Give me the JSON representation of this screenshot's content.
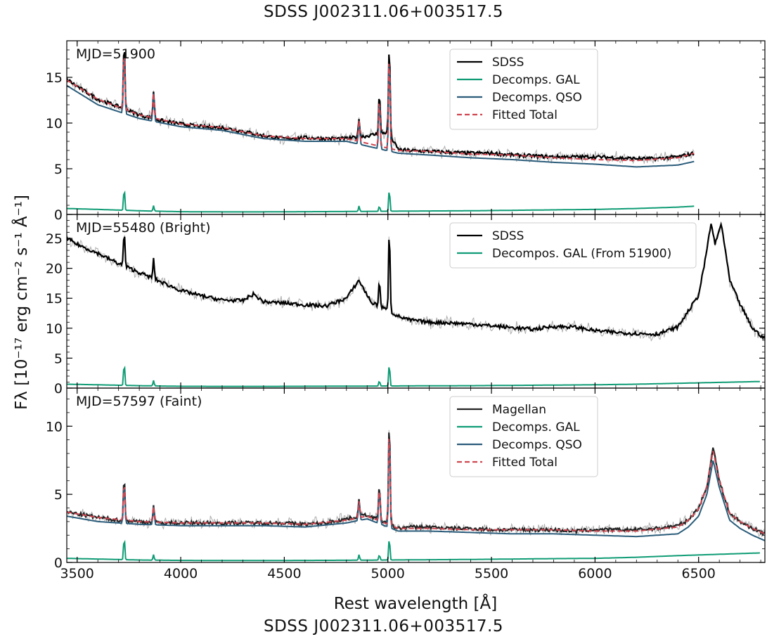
{
  "figure": {
    "title_top": "SDSS J002311.06+003517.5",
    "title_bottom": "SDSS J002311.06+003517.5",
    "xlabel": "Rest wavelength [Å]",
    "ylabel": "Fλ [10⁻¹⁷ erg cm⁻² s⁻¹ Å⁻¹]"
  },
  "colors": {
    "sdss": "#000000",
    "gal": "#0f9c75",
    "qso": "#2a5c7a",
    "total": "#d04550",
    "error": "#9a9a9a"
  },
  "chart_data": [
    {
      "type": "line",
      "panel_label": "MJD=51900",
      "xlim": [
        3450,
        6820
      ],
      "ylim": [
        0,
        19
      ],
      "yticks": [
        0,
        5,
        10,
        15
      ],
      "xticks": [
        3500,
        4000,
        4500,
        5000,
        5500,
        6000,
        6500
      ],
      "grid": false,
      "legend_position": "top-right",
      "series": [
        {
          "name": "SDSS",
          "style": "solid",
          "color": "#000000",
          "x": [
            3450,
            3500,
            3600,
            3700,
            3800,
            3900,
            4000,
            4100,
            4200,
            4300,
            4400,
            4500,
            4600,
            4700,
            4800,
            4900,
            5000,
            5050,
            5100,
            5200,
            5300,
            5400,
            5500,
            5600,
            5700,
            5800,
            5900,
            6000,
            6100,
            6200,
            6300,
            6400,
            6480
          ],
          "y": [
            14.8,
            14.0,
            12.6,
            11.8,
            10.9,
            10.3,
            9.9,
            9.6,
            9.5,
            9.1,
            8.6,
            8.3,
            8.4,
            8.3,
            8.3,
            8.6,
            9.0,
            7.1,
            7.0,
            6.9,
            6.8,
            6.7,
            6.7,
            6.5,
            6.4,
            6.3,
            6.3,
            6.3,
            6.2,
            6.1,
            6.1,
            6.3,
            6.7
          ]
        },
        {
          "name": "Decomps. GAL",
          "style": "solid",
          "color": "#0f9c75",
          "x": [
            3450,
            3600,
            3800,
            4000,
            4200,
            4400,
            4600,
            4800,
            5000,
            5200,
            5400,
            5600,
            5800,
            6000,
            6200,
            6400,
            6480
          ],
          "y": [
            0.65,
            0.55,
            0.4,
            0.3,
            0.28,
            0.28,
            0.3,
            0.32,
            0.35,
            0.38,
            0.4,
            0.45,
            0.5,
            0.55,
            0.65,
            0.8,
            0.9
          ]
        },
        {
          "name": "Decomps. QSO",
          "style": "solid",
          "color": "#2a5c7a",
          "x": [
            3450,
            3600,
            3800,
            4000,
            4200,
            4400,
            4600,
            4800,
            5050,
            5200,
            5400,
            5600,
            5800,
            6000,
            6200,
            6400,
            6480
          ],
          "y": [
            14.1,
            12.0,
            10.5,
            9.6,
            9.2,
            8.3,
            8.0,
            8.0,
            6.7,
            6.5,
            6.2,
            6.0,
            5.7,
            5.5,
            5.2,
            5.4,
            5.8
          ]
        },
        {
          "name": "Fitted Total",
          "style": "dashed",
          "color": "#d04550",
          "x": [
            3450,
            3600,
            3800,
            4000,
            4200,
            4400,
            4600,
            4800,
            5050,
            5200,
            5400,
            5600,
            5800,
            6000,
            6200,
            6400,
            6480
          ],
          "y": [
            14.7,
            12.6,
            10.9,
            9.9,
            9.5,
            8.6,
            8.3,
            8.3,
            7.0,
            6.9,
            6.6,
            6.5,
            6.2,
            6.0,
            5.9,
            6.2,
            6.7
          ]
        }
      ],
      "emission_lines": [
        {
          "x": 3727,
          "peak": 19.0
        },
        {
          "x": 3869,
          "peak": 13.5
        },
        {
          "x": 4861,
          "peak": 10.5
        },
        {
          "x": 4959,
          "peak": 13.5
        },
        {
          "x": 5007,
          "peak": 19.0
        }
      ]
    },
    {
      "type": "line",
      "panel_label": "MJD=55480 (Bright)",
      "xlim": [
        3450,
        6820
      ],
      "ylim": [
        0,
        29
      ],
      "yticks": [
        0,
        5,
        10,
        15,
        20,
        25
      ],
      "xticks": [
        3500,
        4000,
        4500,
        5000,
        5500,
        6000,
        6500
      ],
      "grid": false,
      "legend_position": "top-right",
      "series": [
        {
          "name": "SDSS",
          "style": "solid",
          "color": "#000000",
          "x": [
            3450,
            3500,
            3600,
            3700,
            3800,
            3900,
            4000,
            4100,
            4200,
            4300,
            4350,
            4400,
            4500,
            4600,
            4700,
            4800,
            4860,
            4920,
            5000,
            5050,
            5100,
            5200,
            5300,
            5400,
            5500,
            5600,
            5700,
            5800,
            5900,
            6000,
            6100,
            6200,
            6300,
            6400,
            6500,
            6530,
            6560,
            6580,
            6610,
            6650,
            6700,
            6760,
            6820
          ],
          "y": [
            25.0,
            24.0,
            22.5,
            20.8,
            19.3,
            17.8,
            16.3,
            15.4,
            14.7,
            14.6,
            15.7,
            14.4,
            14.2,
            13.9,
            13.7,
            15.0,
            18.0,
            14.3,
            13.0,
            12.0,
            11.4,
            11.0,
            10.9,
            10.7,
            10.4,
            10.1,
            9.8,
            10.3,
            10.2,
            9.6,
            9.3,
            9.1,
            9.0,
            10.2,
            15.5,
            21.0,
            27.5,
            24.0,
            27.5,
            18.0,
            14.0,
            10.0,
            8.2
          ]
        },
        {
          "name": "Decompos. GAL (From 51900)",
          "style": "solid",
          "color": "#0f9c75",
          "x": [
            3450,
            3600,
            3800,
            4000,
            4200,
            4400,
            4600,
            4800,
            5000,
            5200,
            5400,
            5600,
            5800,
            6000,
            6200,
            6400,
            6800
          ],
          "y": [
            0.65,
            0.55,
            0.4,
            0.3,
            0.28,
            0.28,
            0.3,
            0.32,
            0.35,
            0.38,
            0.4,
            0.45,
            0.5,
            0.55,
            0.65,
            0.8,
            1.1
          ]
        }
      ],
      "emission_lines": [
        {
          "x": 3727,
          "peak": 26.2
        },
        {
          "x": 3869,
          "peak": 21.5
        },
        {
          "x": 4959,
          "peak": 18.0
        },
        {
          "x": 5007,
          "peak": 27.0
        }
      ]
    },
    {
      "type": "line",
      "panel_label": "MJD=57597 (Faint)",
      "xlim": [
        3450,
        6820
      ],
      "ylim": [
        0,
        12.8
      ],
      "yticks": [
        0,
        5,
        10
      ],
      "xticks": [
        3500,
        4000,
        4500,
        5000,
        5500,
        6000,
        6500
      ],
      "xticklabels": [
        "3500",
        "4000",
        "4500",
        "5000",
        "5500",
        "6000",
        "6500"
      ],
      "grid": false,
      "legend_position": "top-right",
      "series": [
        {
          "name": "Magellan",
          "style": "solid",
          "color": "#222222",
          "x": [
            3450,
            3600,
            3700,
            3800,
            3900,
            4000,
            4100,
            4200,
            4300,
            4400,
            4500,
            4600,
            4700,
            4800,
            4900,
            5050,
            5100,
            5200,
            5300,
            5400,
            5500,
            5600,
            5700,
            5800,
            5900,
            6000,
            6100,
            6200,
            6300,
            6400,
            6450,
            6500,
            6540,
            6570,
            6600,
            6650,
            6700,
            6760,
            6820
          ],
          "y": [
            3.7,
            3.3,
            3.1,
            3.0,
            2.9,
            2.9,
            2.9,
            2.9,
            2.9,
            2.9,
            2.9,
            2.8,
            2.9,
            3.2,
            3.5,
            2.5,
            2.6,
            2.6,
            2.5,
            2.5,
            2.4,
            2.4,
            2.4,
            2.4,
            2.3,
            2.4,
            2.4,
            2.4,
            2.5,
            2.7,
            3.1,
            4.0,
            5.5,
            8.5,
            6.0,
            3.6,
            3.0,
            2.5,
            2.1
          ]
        },
        {
          "name": "Decomps. GAL",
          "style": "solid",
          "color": "#0f9c75",
          "x": [
            3450,
            3600,
            3800,
            4000,
            4200,
            4400,
            4600,
            4800,
            5000,
            5200,
            5400,
            5600,
            5800,
            6000,
            6200,
            6400,
            6800
          ],
          "y": [
            0.3,
            0.25,
            0.18,
            0.15,
            0.14,
            0.14,
            0.15,
            0.16,
            0.18,
            0.2,
            0.22,
            0.25,
            0.28,
            0.3,
            0.38,
            0.5,
            0.7
          ]
        },
        {
          "name": "Decomps. QSO",
          "style": "solid",
          "color": "#2a5c7a",
          "x": [
            3450,
            3600,
            3800,
            4000,
            4200,
            4400,
            4600,
            4800,
            4900,
            5050,
            5200,
            5400,
            5600,
            5800,
            6000,
            6200,
            6400,
            6450,
            6500,
            6540,
            6570,
            6600,
            6650,
            6700,
            6760,
            6820
          ],
          "y": [
            3.4,
            3.0,
            2.8,
            2.7,
            2.7,
            2.7,
            2.6,
            2.9,
            3.2,
            2.3,
            2.3,
            2.2,
            2.1,
            2.1,
            2.0,
            1.9,
            2.1,
            2.6,
            3.4,
            5.0,
            7.5,
            5.5,
            3.1,
            2.5,
            2.0,
            1.6
          ]
        },
        {
          "name": "Fitted Total",
          "style": "dashed",
          "color": "#d04550",
          "x": [
            3450,
            3600,
            3800,
            4000,
            4200,
            4400,
            4600,
            4800,
            4900,
            5050,
            5200,
            5400,
            5600,
            5800,
            6000,
            6200,
            6400,
            6450,
            6500,
            6540,
            6570,
            6600,
            6650,
            6700,
            6760,
            6820
          ],
          "y": [
            3.7,
            3.3,
            3.0,
            2.9,
            2.9,
            2.9,
            2.8,
            3.1,
            3.4,
            2.5,
            2.5,
            2.4,
            2.4,
            2.4,
            2.3,
            2.3,
            2.6,
            3.1,
            3.9,
            5.6,
            8.2,
            6.0,
            3.6,
            3.0,
            2.5,
            2.1
          ]
        }
      ],
      "emission_lines": [
        {
          "x": 3727,
          "peak": 6.3
        },
        {
          "x": 3869,
          "peak": 4.2
        },
        {
          "x": 4861,
          "peak": 4.6
        },
        {
          "x": 4959,
          "peak": 5.8
        },
        {
          "x": 5007,
          "peak": 10.8
        }
      ]
    }
  ]
}
